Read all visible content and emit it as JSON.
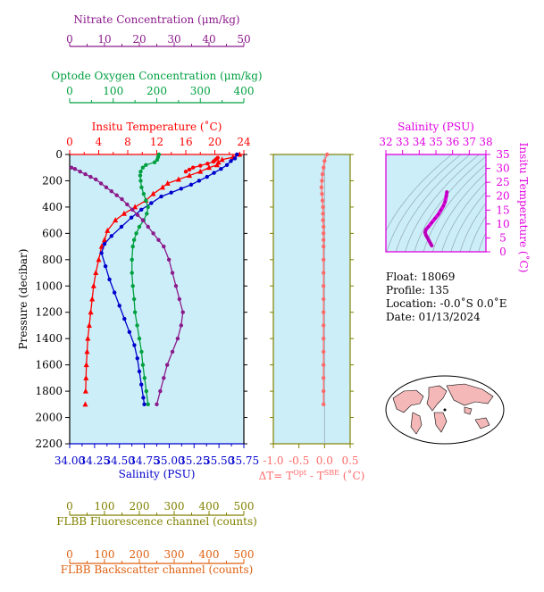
{
  "colors": {
    "nitrate": "#8B1A8B",
    "oxygen": "#00A040",
    "temperature": "#FF0000",
    "salinity": "#0000CC",
    "delta_t": "#FF6A6A",
    "fluorescence": "#808000",
    "backscatter": "#E06010",
    "ts_axis": "#E000E0",
    "plot_bg": "#CCEEF8"
  },
  "float_info": {
    "float": "Float:  18069",
    "profile": "Profile:  135",
    "location": "Location:  -0.0˚S   0.0˚E",
    "date": "Date:  01/13/2024"
  },
  "chart_data": [
    {
      "type": "line",
      "id": "main-profile",
      "ylabel": "Pressure (decibar)",
      "ylim": [
        0,
        2200
      ],
      "yticks": [
        0,
        200,
        400,
        600,
        800,
        1000,
        1200,
        1400,
        1600,
        1800,
        2000,
        2200
      ],
      "grid": false,
      "axes": {
        "nitrate": {
          "label": "Nitrate Concentration (μm/kg)",
          "lim": [
            0,
            50
          ],
          "ticks": [
            0,
            10,
            20,
            30,
            40,
            50
          ]
        },
        "oxygen": {
          "label": "Optode Oxygen Concentration (μm/kg)",
          "lim": [
            0,
            400
          ],
          "ticks": [
            0,
            100,
            200,
            300,
            400
          ]
        },
        "temperature": {
          "label": "Insitu Temperature (˚C)",
          "lim": [
            0,
            24
          ],
          "ticks": [
            0,
            4,
            8,
            12,
            16,
            20,
            24
          ]
        },
        "salinity": {
          "label": "Salinity (PSU)",
          "lim": [
            34.0,
            35.75
          ],
          "ticks": [
            "34.00",
            "34.25",
            "34.50",
            "34.75",
            "35.00",
            "35.25",
            "35.50",
            "35.75"
          ]
        },
        "fluorescence": {
          "label": "FLBB Fluorescence channel (counts)",
          "lim": [
            0,
            500
          ],
          "ticks": [
            0,
            100,
            200,
            300,
            400,
            500
          ]
        },
        "backscatter": {
          "label": "FLBB Backscatter channel (counts)",
          "lim": [
            0,
            500
          ],
          "ticks": [
            0,
            100,
            200,
            300,
            400,
            500
          ]
        }
      },
      "series": [
        {
          "key": "temperature",
          "marker": "triangle",
          "x": [
            23.4,
            22.5,
            21.0,
            20.5,
            20.3,
            19.2,
            18.0,
            16.5,
            15.0,
            13.5,
            12.8,
            11.5,
            10.5,
            9.0,
            7.5,
            6.3,
            5.2,
            4.8,
            4.4,
            4.0,
            3.6,
            3.3,
            3.1,
            2.9,
            2.7,
            2.5,
            2.4,
            2.3,
            2.25,
            2.2
          ],
          "y": [
            0,
            20,
            40,
            60,
            80,
            100,
            130,
            160,
            190,
            220,
            250,
            300,
            350,
            400,
            450,
            500,
            580,
            650,
            700,
            800,
            900,
            1000,
            1100,
            1200,
            1300,
            1400,
            1500,
            1600,
            1700,
            1800
          ]
        },
        {
          "key": "temperature",
          "marker": "circle",
          "x": [
            20.4,
            20.2,
            20.0,
            19.8,
            19.0,
            18.0,
            17.0,
            16.5,
            16.0
          ],
          "y": [
            25,
            35,
            45,
            55,
            70,
            85,
            100,
            115,
            130
          ]
        },
        {
          "key": "temperature",
          "marker": "triangle",
          "x": [
            2.15
          ],
          "y": [
            1900
          ]
        },
        {
          "key": "salinity",
          "marker": "circle",
          "x": [
            35.68,
            35.66,
            35.62,
            35.58,
            35.52,
            35.45,
            35.38,
            35.3,
            35.22,
            35.12,
            35.02,
            34.92,
            34.82,
            34.72,
            34.62,
            34.52,
            34.42,
            34.35,
            34.32,
            34.36,
            34.4,
            34.45,
            34.5,
            34.55,
            34.6,
            34.65,
            34.68,
            34.7,
            34.72,
            34.74,
            34.75
          ],
          "y": [
            0,
            30,
            50,
            80,
            110,
            140,
            170,
            200,
            230,
            260,
            290,
            320,
            370,
            420,
            480,
            550,
            620,
            680,
            750,
            850,
            950,
            1050,
            1150,
            1250,
            1350,
            1450,
            1550,
            1650,
            1750,
            1850,
            1900
          ]
        },
        {
          "key": "oxygen",
          "marker": "circle",
          "x": [
            205,
            203,
            201,
            195,
            175,
            168,
            163,
            162,
            163,
            165,
            170,
            175,
            180,
            177,
            170,
            160,
            153,
            148,
            145,
            143,
            143,
            145,
            148,
            150,
            155,
            160,
            165,
            168,
            172,
            176,
            180
          ],
          "y": [
            0,
            20,
            40,
            60,
            80,
            100,
            130,
            160,
            200,
            250,
            300,
            350,
            400,
            450,
            500,
            550,
            600,
            650,
            700,
            800,
            900,
            1000,
            1100,
            1200,
            1300,
            1400,
            1500,
            1600,
            1700,
            1800,
            1900
          ]
        },
        {
          "key": "nitrate",
          "marker": "circle",
          "x": [
            0.5,
            1.5,
            3.0,
            4.5,
            6.0,
            7.5,
            9.0,
            10.5,
            12.0,
            13.5,
            15.0,
            16.5,
            18.0,
            19.5,
            21.0,
            22.5,
            24.0,
            25.5,
            27.0,
            28.5,
            29.5,
            30.5,
            31.5,
            32.5,
            32.0,
            31.0,
            29.5,
            28.0,
            27.0,
            26.0,
            25.0
          ],
          "y": [
            100,
            110,
            130,
            150,
            170,
            190,
            220,
            250,
            280,
            310,
            340,
            380,
            420,
            460,
            500,
            550,
            600,
            650,
            700,
            800,
            900,
            1000,
            1100,
            1200,
            1300,
            1400,
            1500,
            1600,
            1700,
            1800,
            1900
          ]
        }
      ]
    },
    {
      "type": "line",
      "id": "delta-t",
      "xlabel": "ΔT= T",
      "xlabel_sup1": "Opt",
      "xlabel_mid": " - T",
      "xlabel_sup2": "SBE",
      "xlabel_unit": " (˚C)",
      "xlim": [
        -1.0,
        0.5
      ],
      "xticks": [
        "-1.0",
        "-0.5",
        "0.0",
        "0.5"
      ],
      "ylim": [
        0,
        2200
      ],
      "series": [
        {
          "key": "delta_t",
          "marker": "circle",
          "x": [
            0.05,
            0.0,
            -0.02,
            -0.04,
            -0.05,
            -0.06,
            -0.05,
            -0.04,
            -0.03,
            -0.03,
            -0.03,
            -0.02,
            -0.02,
            -0.02,
            -0.02,
            -0.02,
            -0.02,
            -0.02,
            -0.02,
            -0.02,
            -0.02,
            -0.02,
            -0.02,
            -0.02,
            -0.02,
            -0.02,
            -0.02
          ],
          "y": [
            0,
            50,
            100,
            150,
            200,
            250,
            300,
            350,
            400,
            450,
            500,
            550,
            600,
            650,
            700,
            800,
            900,
            1000,
            1100,
            1200,
            1300,
            1400,
            1500,
            1600,
            1700,
            1800,
            1900
          ]
        }
      ]
    },
    {
      "type": "scatter",
      "id": "ts-diagram",
      "xlabel": "Salinity (PSU)",
      "ylabel": "Insitu Temperature (˚C)",
      "xlim": [
        32,
        38
      ],
      "ylim": [
        0,
        35
      ],
      "xticks": [
        32,
        33,
        34,
        35,
        36,
        37,
        38
      ],
      "yticks": [
        0,
        5,
        10,
        15,
        20,
        25,
        30,
        35
      ],
      "series": [
        {
          "key": "ts",
          "marker": "line",
          "x": [
            34.75,
            34.72,
            34.68,
            34.62,
            34.55,
            34.5,
            34.45,
            34.4,
            34.35,
            34.4,
            34.55,
            34.75,
            34.95,
            35.15,
            35.3,
            35.45,
            35.55,
            35.62,
            35.66
          ],
          "y": [
            2.2,
            2.5,
            3.0,
            3.6,
            4.4,
            5.0,
            5.5,
            6.0,
            7.0,
            8.0,
            9.0,
            10.5,
            12.0,
            13.5,
            15.0,
            16.5,
            18.0,
            20.0,
            21.5
          ]
        }
      ]
    }
  ]
}
